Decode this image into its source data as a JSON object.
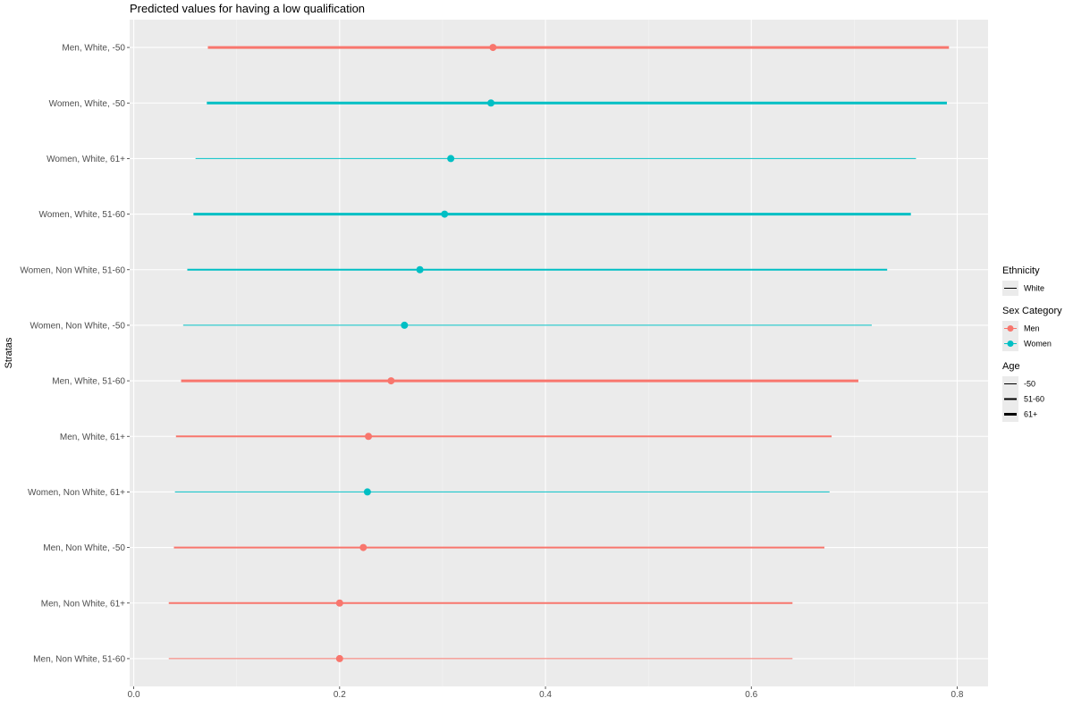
{
  "chart_data": {
    "type": "pointrange",
    "title": "Predicted values for having a low qualification",
    "ylabel": "Stratas",
    "xlabel": "",
    "xlim": [
      -0.004,
      0.83
    ],
    "xticks": [
      0.0,
      0.2,
      0.4,
      0.6,
      0.8
    ],
    "xtick_labels": [
      "0.0",
      "0.2",
      "0.4",
      "0.6",
      "0.8"
    ],
    "grid": true,
    "legend_position": "right",
    "colors": {
      "Men": "#F8766D",
      "Women": "#00BFC4",
      "panel": "#EBEBEB",
      "grid": "#FFFFFF"
    },
    "points": [
      {
        "label": "Men, White, -50",
        "sex": "Men",
        "age": "-50",
        "ethnicity": "White",
        "estimate": 0.349,
        "lower": 0.072,
        "upper": 0.792,
        "linewidth": 3
      },
      {
        "label": "Women, White, -50",
        "sex": "Women",
        "age": "-50",
        "ethnicity": "White",
        "estimate": 0.347,
        "lower": 0.071,
        "upper": 0.79,
        "linewidth": 3
      },
      {
        "label": "Women, White, 61+",
        "sex": "Women",
        "age": "61+",
        "ethnicity": "White",
        "estimate": 0.308,
        "lower": 0.06,
        "upper": 0.76,
        "linewidth": 1
      },
      {
        "label": "Women, White, 51-60",
        "sex": "Women",
        "age": "51-60",
        "ethnicity": "White",
        "estimate": 0.302,
        "lower": 0.058,
        "upper": 0.755,
        "linewidth": 3
      },
      {
        "label": "Women, Non White, 51-60",
        "sex": "Women",
        "age": "51-60",
        "ethnicity": "Non White",
        "estimate": 0.278,
        "lower": 0.052,
        "upper": 0.732,
        "linewidth": 2
      },
      {
        "label": "Women, Non White, -50",
        "sex": "Women",
        "age": "-50",
        "ethnicity": "Non White",
        "estimate": 0.263,
        "lower": 0.048,
        "upper": 0.717,
        "linewidth": 1
      },
      {
        "label": "Men, White, 51-60",
        "sex": "Men",
        "age": "51-60",
        "ethnicity": "White",
        "estimate": 0.25,
        "lower": 0.046,
        "upper": 0.704,
        "linewidth": 3
      },
      {
        "label": "Men, White, 61+",
        "sex": "Men",
        "age": "61+",
        "ethnicity": "White",
        "estimate": 0.228,
        "lower": 0.041,
        "upper": 0.678,
        "linewidth": 2
      },
      {
        "label": "Women, Non White, 61+",
        "sex": "Women",
        "age": "61+",
        "ethnicity": "Non White",
        "estimate": 0.227,
        "lower": 0.04,
        "upper": 0.676,
        "linewidth": 1
      },
      {
        "label": "Men, Non White, -50",
        "sex": "Men",
        "age": "-50",
        "ethnicity": "Non White",
        "estimate": 0.223,
        "lower": 0.039,
        "upper": 0.671,
        "linewidth": 2
      },
      {
        "label": "Men, Non White, 61+",
        "sex": "Men",
        "age": "61+",
        "ethnicity": "Non White",
        "estimate": 0.2,
        "lower": 0.034,
        "upper": 0.64,
        "linewidth": 2
      },
      {
        "label": "Men, Non White, 51-60",
        "sex": "Men",
        "age": "51-60",
        "ethnicity": "Non White",
        "estimate": 0.2,
        "lower": 0.034,
        "upper": 0.64,
        "linewidth": 1
      }
    ],
    "legend": [
      {
        "title": "Ethnicity",
        "items": [
          {
            "label": "White",
            "kind": "line",
            "linewidth": 1
          }
        ]
      },
      {
        "title": "Sex Category",
        "items": [
          {
            "label": "Men",
            "kind": "pointrange",
            "color": "#F8766D"
          },
          {
            "label": "Women",
            "kind": "pointrange",
            "color": "#00BFC4"
          }
        ]
      },
      {
        "title": "Age",
        "items": [
          {
            "label": "-50",
            "kind": "line",
            "linewidth": 1
          },
          {
            "label": "51-60",
            "kind": "line",
            "linewidth": 2
          },
          {
            "label": "61+",
            "kind": "line",
            "linewidth": 3
          }
        ]
      }
    ]
  }
}
